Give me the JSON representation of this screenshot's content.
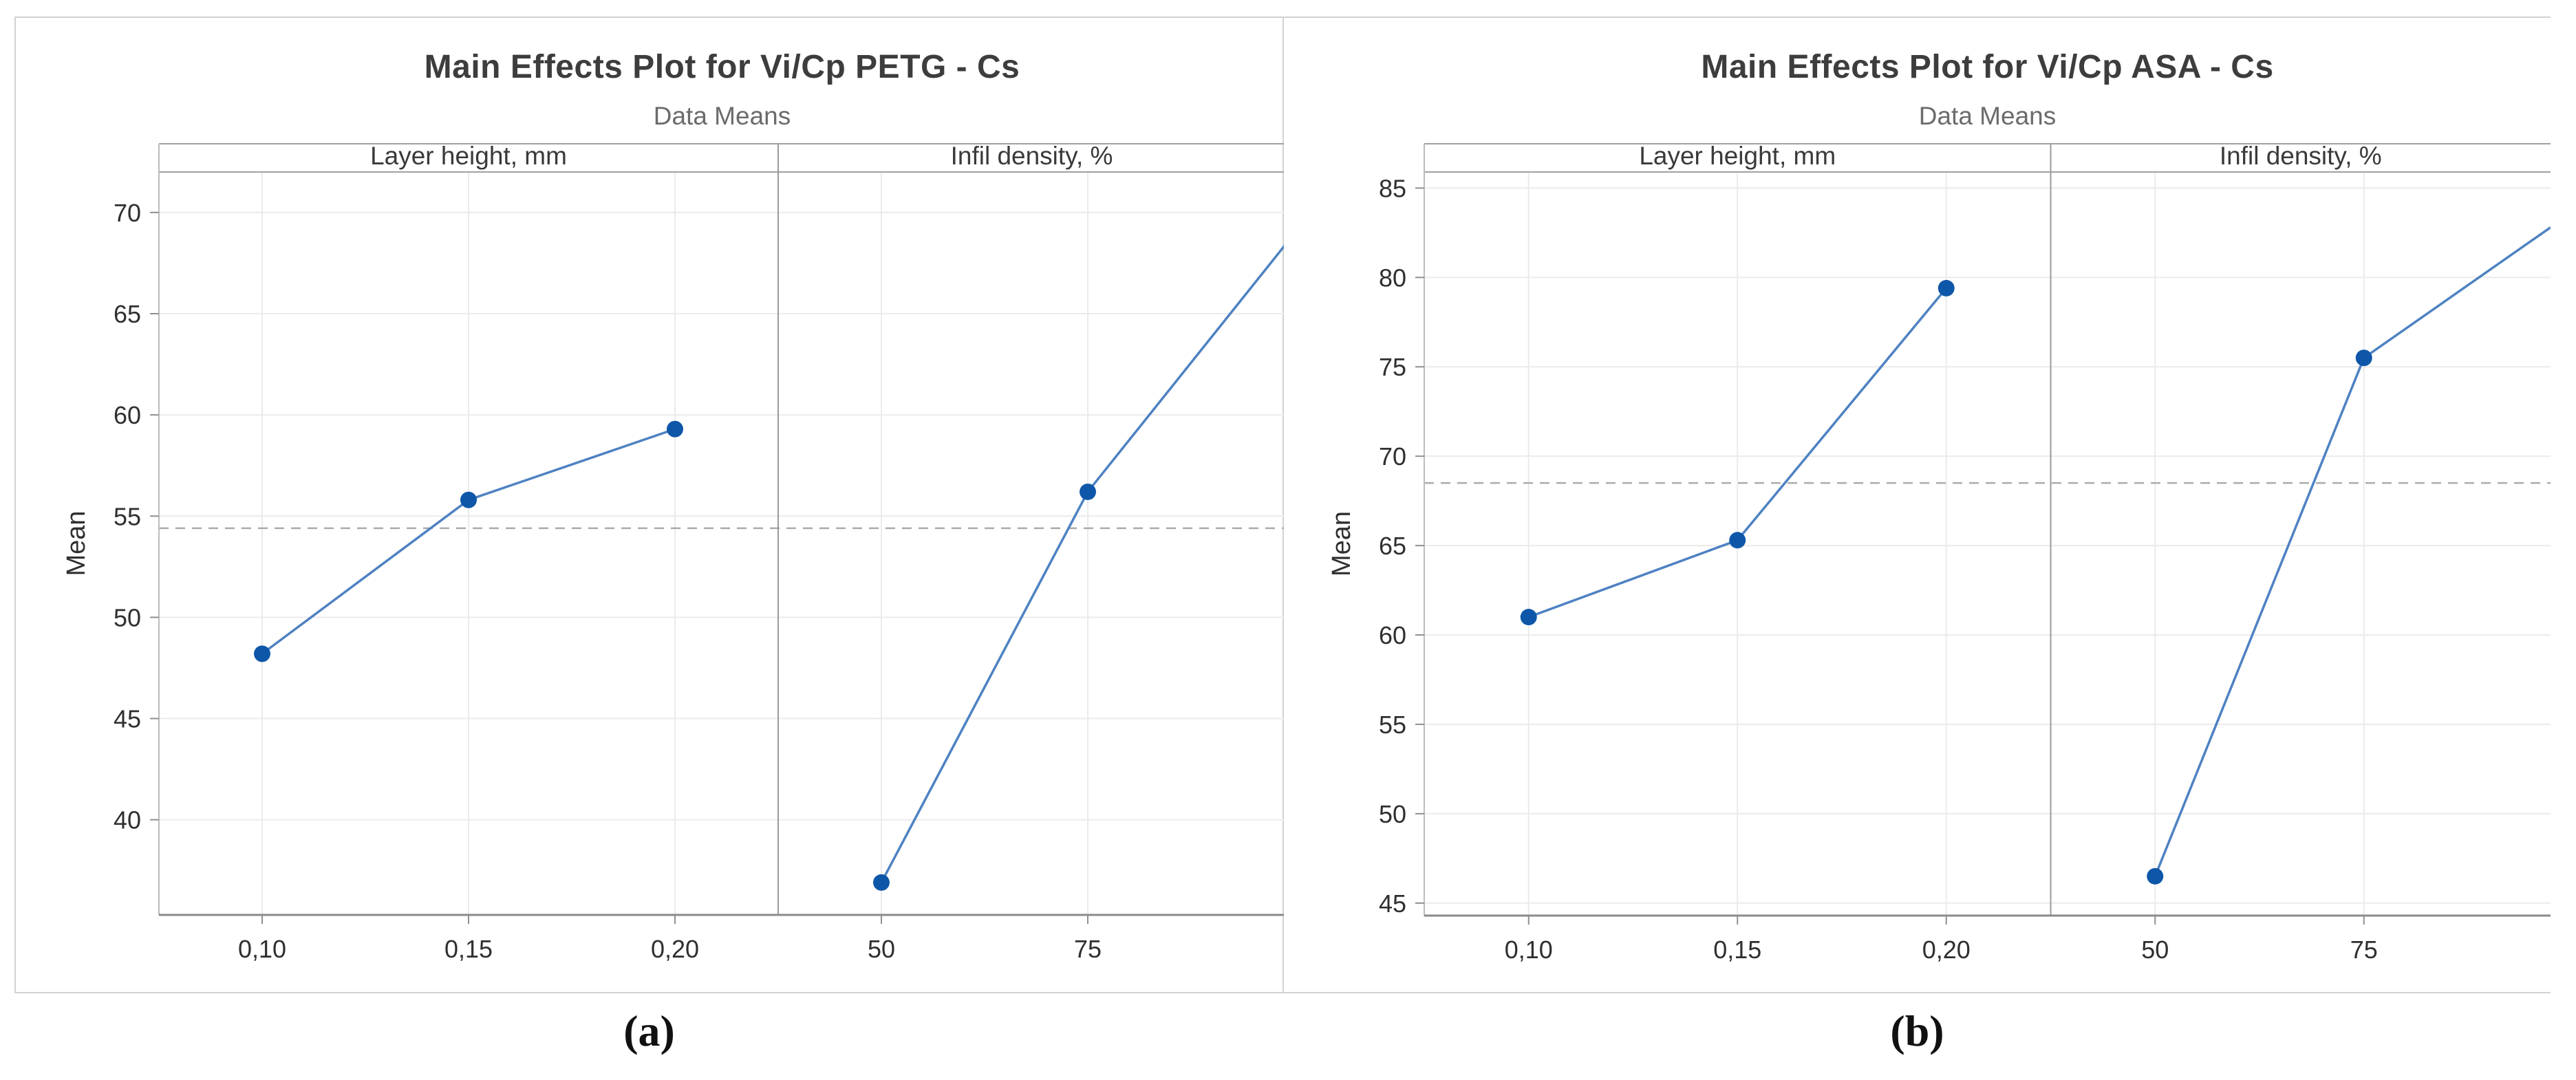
{
  "page": {
    "background": "#ffffff"
  },
  "figures": [
    {
      "id": "a",
      "caption": "(a)"
    },
    {
      "id": "b",
      "caption": "(b)"
    }
  ],
  "chart_data": [
    {
      "id": "a",
      "type": "line",
      "title": "Main Effects Plot for Vi/Cp PETG - Cs",
      "subtitle": "Data Means",
      "ylabel": "Mean",
      "yticks": [
        40,
        45,
        50,
        55,
        60,
        65,
        70
      ],
      "ylim": [
        35.3,
        72.0
      ],
      "grand_mean": 54.4,
      "grid": true,
      "panels": [
        {
          "label": "Layer height, mm",
          "categories": [
            "0,10",
            "0,15",
            "0,20"
          ],
          "values": [
            48.2,
            55.8,
            59.3
          ]
        },
        {
          "label": "Infil density, %",
          "categories": [
            "50",
            "75"
          ],
          "values": [
            36.9,
            56.2
          ],
          "line_exit_value": 68.4
        }
      ]
    },
    {
      "id": "b",
      "type": "line",
      "title": "Main Effects Plot for Vi/Cp ASA - Cs",
      "subtitle": "Data Means",
      "ylabel": "Mean",
      "yticks": [
        45,
        50,
        55,
        60,
        65,
        70,
        75,
        80,
        85
      ],
      "ylim": [
        44.3,
        85.9
      ],
      "grand_mean": 68.5,
      "grid": true,
      "panels": [
        {
          "label": "Layer height, mm",
          "categories": [
            "0,10",
            "0,15",
            "0,20"
          ],
          "values": [
            61.0,
            65.3,
            79.4
          ]
        },
        {
          "label": "Infil density, %",
          "categories": [
            "50",
            "75"
          ],
          "values": [
            46.5,
            75.5
          ],
          "line_exit_value": 82.8
        }
      ]
    }
  ],
  "colors": {
    "marker": "#0e57a8",
    "line": "#4e82c2",
    "grid": "#ebebeb",
    "frame": "#9a9a9a",
    "header_border": "#a0a0a0",
    "dashed_mean": "#ababab",
    "tick": "#8f8f8f",
    "tick_label": "#2f2f2f",
    "header_text": "#3a3a3a",
    "title_text": "#3d3d3d",
    "subtitle_text": "#6b6b6b"
  }
}
